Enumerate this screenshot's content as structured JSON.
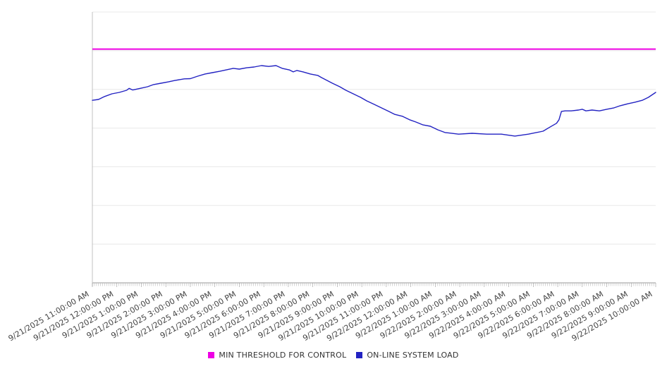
{
  "chart_data": {
    "type": "line",
    "title": "",
    "legend_position": "bottom",
    "x_axis": {
      "labels": [
        "9/21/2025 11:00:00 AM",
        "9/21/2025 12:00:00 PM",
        "9/21/2025 1:00:00 PM",
        "9/21/2025 2:00:00 PM",
        "9/21/2025 3:00:00 PM",
        "9/21/2025 4:00:00 PM",
        "9/21/2025 5:00:00 PM",
        "9/21/2025 6:00:00 PM",
        "9/21/2025 7:00:00 PM",
        "9/21/2025 8:00:00 PM",
        "9/21/2025 9:00:00 PM",
        "9/21/2025 10:00:00 PM",
        "9/21/2025 11:00:00 PM",
        "9/22/2025 12:00:00 AM",
        "9/22/2025 1:00:00 AM",
        "9/22/2025 2:00:00 AM",
        "9/22/2025 3:00:00 AM",
        "9/22/2025 4:00:00 AM",
        "9/22/2025 5:00:00 AM",
        "9/22/2025 6:00:00 AM",
        "9/22/2025 7:00:00 AM",
        "9/22/2025 8:00:00 AM",
        "9/22/2025 9:00:00 AM",
        "9/22/2025 10:00:00 AM"
      ],
      "minor_tick_minutes": 5,
      "span_hours": 23
    },
    "y_axis": {
      "labels_visible": false,
      "display_range": [
        0,
        100
      ],
      "gridline_count": 8,
      "grid": true
    },
    "series": [
      {
        "name": "MIN THRESHOLD FOR CONTROL",
        "color": "#EE00E4",
        "kind": "threshold",
        "value": 86.3
      },
      {
        "name": "ON-LINE SYSTEM LOAD",
        "color": "#2222C2",
        "kind": "line",
        "points": [
          [
            0.0,
            67.4
          ],
          [
            0.25,
            67.7
          ],
          [
            0.5,
            68.8
          ],
          [
            0.8,
            69.8
          ],
          [
            1.1,
            70.3
          ],
          [
            1.4,
            71.1
          ],
          [
            1.5,
            71.8
          ],
          [
            1.65,
            71.2
          ],
          [
            2.0,
            71.9
          ],
          [
            2.25,
            72.4
          ],
          [
            2.5,
            73.2
          ],
          [
            2.8,
            73.7
          ],
          [
            3.1,
            74.2
          ],
          [
            3.35,
            74.7
          ],
          [
            3.75,
            75.3
          ],
          [
            4.0,
            75.4
          ],
          [
            4.3,
            76.3
          ],
          [
            4.6,
            77.1
          ],
          [
            4.9,
            77.6
          ],
          [
            5.2,
            78.1
          ],
          [
            5.45,
            78.6
          ],
          [
            5.75,
            79.2
          ],
          [
            6.0,
            78.9
          ],
          [
            6.3,
            79.4
          ],
          [
            6.6,
            79.7
          ],
          [
            6.9,
            80.2
          ],
          [
            7.2,
            79.9
          ],
          [
            7.5,
            80.2
          ],
          [
            7.75,
            79.2
          ],
          [
            8.05,
            78.6
          ],
          [
            8.2,
            77.9
          ],
          [
            8.35,
            78.4
          ],
          [
            8.6,
            77.9
          ],
          [
            8.9,
            77.1
          ],
          [
            9.2,
            76.6
          ],
          [
            9.35,
            75.8
          ],
          [
            9.8,
            73.7
          ],
          [
            10.1,
            72.4
          ],
          [
            10.35,
            71.1
          ],
          [
            10.65,
            69.8
          ],
          [
            10.95,
            68.5
          ],
          [
            11.2,
            67.2
          ],
          [
            11.5,
            65.9
          ],
          [
            11.8,
            64.6
          ],
          [
            12.1,
            63.3
          ],
          [
            12.35,
            62.2
          ],
          [
            12.65,
            61.5
          ],
          [
            12.95,
            60.2
          ],
          [
            13.2,
            59.4
          ],
          [
            13.5,
            58.3
          ],
          [
            13.8,
            57.8
          ],
          [
            14.1,
            56.5
          ],
          [
            14.4,
            55.5
          ],
          [
            14.95,
            54.9
          ],
          [
            15.5,
            55.2
          ],
          [
            16.1,
            54.9
          ],
          [
            16.7,
            54.9
          ],
          [
            17.25,
            54.2
          ],
          [
            17.8,
            54.9
          ],
          [
            18.4,
            56.0
          ],
          [
            18.7,
            57.6
          ],
          [
            18.95,
            58.9
          ],
          [
            19.05,
            60.2
          ],
          [
            19.15,
            63.3
          ],
          [
            19.3,
            63.5
          ],
          [
            19.55,
            63.5
          ],
          [
            19.85,
            63.8
          ],
          [
            20.0,
            64.1
          ],
          [
            20.15,
            63.5
          ],
          [
            20.4,
            63.8
          ],
          [
            20.7,
            63.5
          ],
          [
            21.0,
            64.1
          ],
          [
            21.3,
            64.6
          ],
          [
            21.55,
            65.4
          ],
          [
            21.85,
            66.1
          ],
          [
            22.15,
            66.7
          ],
          [
            22.45,
            67.4
          ],
          [
            22.7,
            68.5
          ],
          [
            23.0,
            70.3
          ]
        ]
      }
    ]
  },
  "legend": {
    "threshold_label": "MIN THRESHOLD FOR CONTROL",
    "load_label": "ON-LINE SYSTEM LOAD"
  }
}
